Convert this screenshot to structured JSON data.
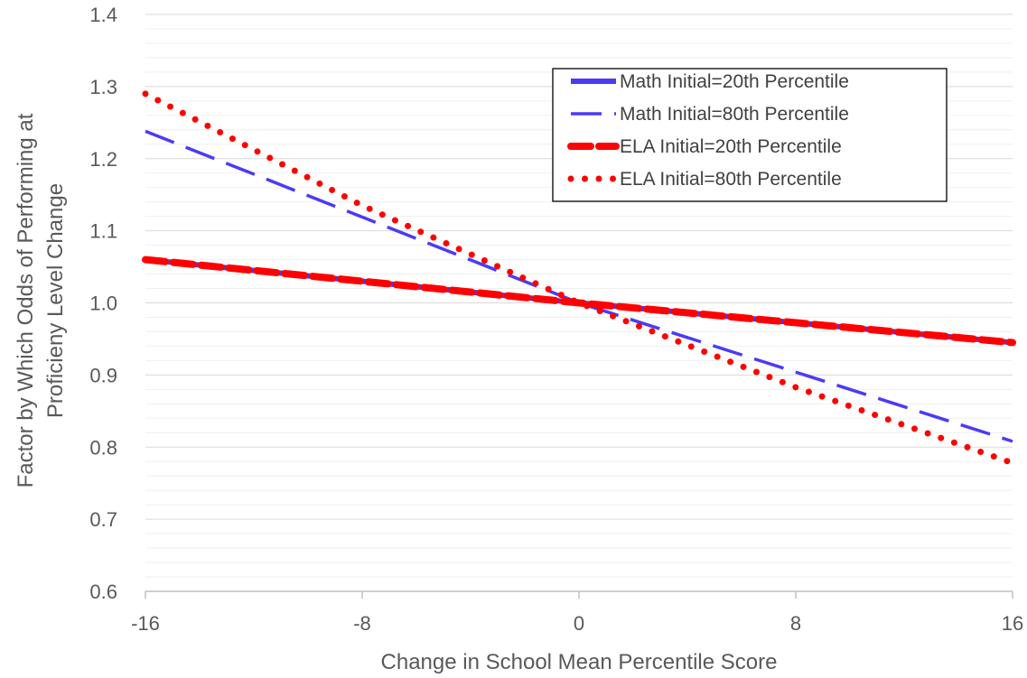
{
  "chart_data": {
    "type": "line",
    "title": "",
    "xlabel": "Change in School Mean Percentile Score",
    "ylabel_lines": [
      "Factor by Which Odds of Performing at",
      "Proficieny Level Change"
    ],
    "xlim": [
      -16,
      16
    ],
    "ylim": [
      0.6,
      1.4
    ],
    "x_ticks": [
      -16,
      -8,
      0,
      8,
      16
    ],
    "x_tick_labels": [
      "-16",
      "-8",
      "0",
      "8",
      "16"
    ],
    "y_ticks": [
      0.6,
      0.7,
      0.8,
      0.9,
      1.0,
      1.1,
      1.2,
      1.3,
      1.4
    ],
    "y_tick_labels": [
      "0.6",
      "0.7",
      "0.8",
      "0.9",
      "1.0",
      "1.1",
      "1.2",
      "1.3",
      "1.4"
    ],
    "grid": true,
    "legend_position": "top-right",
    "series": [
      {
        "name": "Math Initial=20th Percentile",
        "style": "solid-thick",
        "color": "#4B3BF5",
        "x": [
          -16,
          0,
          16
        ],
        "y": [
          1.06,
          1.0,
          0.945
        ]
      },
      {
        "name": "Math Initial=80th Percentile",
        "style": "long-dash",
        "color": "#4B3BF5",
        "x": [
          -16,
          0,
          16
        ],
        "y": [
          1.238,
          1.0,
          0.808
        ]
      },
      {
        "name": "ELA Initial=20th Percentile",
        "style": "thick-dash",
        "color": "#FF0000",
        "x": [
          -16,
          0,
          16
        ],
        "y": [
          1.06,
          1.0,
          0.945
        ]
      },
      {
        "name": "ELA Initial=80th Percentile",
        "style": "dotted",
        "color": "#FF0000",
        "x": [
          -16,
          -8,
          0,
          8,
          16
        ],
        "y": [
          1.29,
          1.135,
          1.0,
          0.883,
          0.778
        ]
      }
    ]
  }
}
